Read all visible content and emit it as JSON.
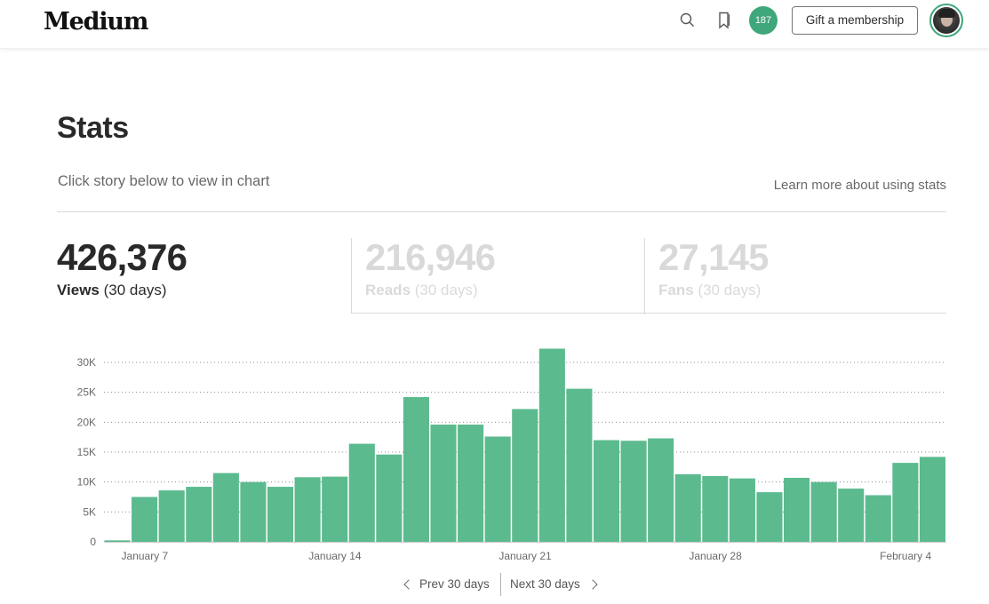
{
  "header": {
    "logo": "Medium",
    "notification_count": "187",
    "gift_label": "Gift a membership"
  },
  "page": {
    "title": "Stats",
    "subtitle": "Click story below to view in chart",
    "learn_link": "Learn more about using stats"
  },
  "stats": {
    "views": {
      "value": "426,376",
      "label": "Views",
      "period": "(30 days)"
    },
    "reads": {
      "value": "216,946",
      "label": "Reads",
      "period": "(30 days)"
    },
    "fans": {
      "value": "27,145",
      "label": "Fans",
      "period": "(30 days)"
    }
  },
  "colors": {
    "accent": "#3fa77a",
    "bar": "#5cba8f"
  },
  "chart_data": {
    "type": "bar",
    "ylim": [
      0,
      30000
    ],
    "yticks": [
      0,
      5000,
      10000,
      15000,
      20000,
      25000,
      30000
    ],
    "ytick_labels": [
      "0",
      "5K",
      "10K",
      "15K",
      "20K",
      "25K",
      "30K"
    ],
    "xtick_labels": [
      "January 7",
      "January 14",
      "January 21",
      "January 28",
      "February 4"
    ],
    "xtick_indices": [
      1,
      8,
      15,
      22,
      29
    ],
    "grid": "dotted horizontal",
    "values": [
      250,
      7500,
      8600,
      9200,
      11500,
      10000,
      9200,
      10800,
      10900,
      16400,
      14600,
      24200,
      19600,
      19600,
      17600,
      22200,
      32300,
      25600,
      17000,
      16900,
      17300,
      11300,
      11000,
      10600,
      8300,
      10700,
      10000,
      8900,
      7800,
      13200,
      14200
    ]
  },
  "pager": {
    "prev": "Prev 30 days",
    "next": "Next 30 days"
  }
}
